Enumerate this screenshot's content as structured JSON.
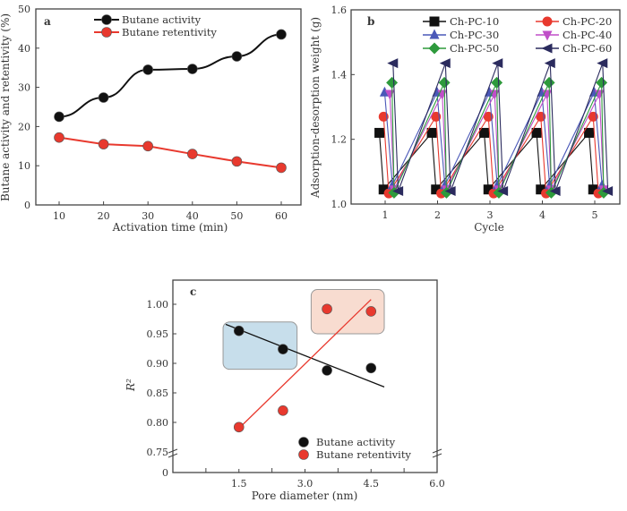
{
  "chart_data": [
    {
      "panel": "a",
      "type": "line",
      "xlabel": "Activation time (min)",
      "ylabel": "Butane activity and retentivity (%)",
      "xlim": [
        5,
        65
      ],
      "ylim": [
        0,
        50
      ],
      "xticks": [
        10,
        20,
        30,
        40,
        50,
        60
      ],
      "yticks": [
        0,
        10,
        20,
        30,
        40,
        50
      ],
      "x": [
        10,
        20,
        30,
        40,
        50,
        60
      ],
      "series": [
        {
          "name": "Butane activity",
          "color": "#111111",
          "values": [
            22.5,
            27.4,
            34.5,
            34.7,
            37.9,
            43.5
          ]
        },
        {
          "name": "Butane retentivity",
          "color": "#e8392e",
          "values": [
            17.2,
            15.5,
            15.0,
            13.0,
            11.1,
            9.5
          ]
        }
      ],
      "legend": "top-center",
      "grid": false
    },
    {
      "panel": "b",
      "type": "line",
      "xlabel": "Cycle",
      "ylabel": "Adsorption-desorption weight (g)",
      "xlim": [
        0.35,
        5.5
      ],
      "ylim": [
        1.0,
        1.6
      ],
      "xticks": [
        1,
        2,
        3,
        4,
        5
      ],
      "yticks": [
        1.0,
        1.2,
        1.4,
        1.6
      ],
      "series": [
        {
          "name": "Ch-PC-10",
          "color": "#111111",
          "marker": "square",
          "adsorption": 1.22,
          "desorption": 1.045
        },
        {
          "name": "Ch-PC-20",
          "color": "#e8392e",
          "marker": "circle",
          "adsorption": 1.27,
          "desorption": 1.033
        },
        {
          "name": "Ch-PC-30",
          "color": "#4a58b8",
          "marker": "triangle-up",
          "adsorption": 1.345,
          "desorption": 1.058
        },
        {
          "name": "Ch-PC-40",
          "color": "#c04ec8",
          "marker": "triangle-down",
          "adsorption": 1.34,
          "desorption": 1.045
        },
        {
          "name": "Ch-PC-50",
          "color": "#2e9a3c",
          "marker": "diamond",
          "adsorption": 1.375,
          "desorption": 1.035
        },
        {
          "name": "Ch-PC-60",
          "color": "#2b2b5e",
          "marker": "triangle-left",
          "adsorption": 1.435,
          "desorption": 1.04
        }
      ],
      "legend": "top",
      "grid": false
    },
    {
      "panel": "c",
      "type": "scatter",
      "xlabel": "Pore diameter (nm)",
      "ylabel": "R²",
      "xlim": [
        0,
        6.0
      ],
      "ylim": [
        0.75,
        1.04
      ],
      "axis_break": true,
      "xticks": [
        1.5,
        3.0,
        4.5,
        6.0
      ],
      "xtick_labels": [
        "1.5",
        "3.0",
        "4.5",
        "6.0"
      ],
      "yticks": [
        0.75,
        0.8,
        0.85,
        0.9,
        0.95,
        1.0
      ],
      "ytick_labels": [
        "0.75",
        "0.80",
        "0.85",
        "0.90",
        "0.95",
        "1.00"
      ],
      "ytick_zero_label": "0",
      "series": [
        {
          "name": "Butane activity",
          "color": "#111111",
          "x": [
            1.5,
            2.5,
            3.5,
            4.5
          ],
          "y": [
            0.955,
            0.924,
            0.888,
            0.892
          ],
          "fit": [
            [
              1.2,
              0.966
            ],
            [
              4.8,
              0.86
            ]
          ]
        },
        {
          "name": "Butane retentivity",
          "color": "#e8392e",
          "x": [
            1.5,
            2.5,
            3.5,
            4.5
          ],
          "y": [
            0.792,
            0.82,
            0.992,
            0.988
          ],
          "fit": [
            [
              1.5,
              0.79
            ],
            [
              4.5,
              1.008
            ]
          ]
        }
      ],
      "highlight_boxes": [
        {
          "color": "#b9d6e6",
          "x": [
            1.14,
            2.82
          ],
          "y": [
            0.89,
            0.97
          ]
        },
        {
          "color": "#f6d3c4",
          "x": [
            3.14,
            4.8
          ],
          "y": [
            0.95,
            1.025
          ]
        }
      ],
      "legend": "bottom-right",
      "grid": false
    }
  ]
}
